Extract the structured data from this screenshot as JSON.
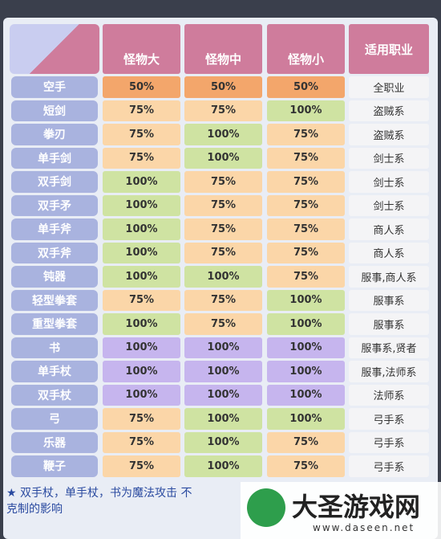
{
  "header": {
    "columns": [
      "怪物大",
      "怪物中",
      "怪物小",
      "适用职业"
    ]
  },
  "table": {
    "rows": [
      [
        "空手",
        "50%",
        "50%",
        "50%",
        "全职业"
      ],
      [
        "短剑",
        "75%",
        "75%",
        "100%",
        "盗贼系"
      ],
      [
        "拳刃",
        "75%",
        "100%",
        "75%",
        "盗贼系"
      ],
      [
        "单手剑",
        "75%",
        "100%",
        "75%",
        "剑士系"
      ],
      [
        "双手剑",
        "100%",
        "75%",
        "75%",
        "剑士系"
      ],
      [
        "双手矛",
        "100%",
        "75%",
        "75%",
        "剑士系"
      ],
      [
        "单手斧",
        "100%",
        "75%",
        "75%",
        "商人系"
      ],
      [
        "双手斧",
        "100%",
        "75%",
        "75%",
        "商人系"
      ],
      [
        "钝器",
        "100%",
        "100%",
        "75%",
        "服事,商人系"
      ],
      [
        "轻型拳套",
        "75%",
        "75%",
        "100%",
        "服事系"
      ],
      [
        "重型拳套",
        "100%",
        "75%",
        "100%",
        "服事系"
      ],
      [
        "书",
        "100%",
        "100%",
        "100%",
        "服事系,贤者"
      ],
      [
        "单手杖",
        "100%",
        "100%",
        "100%",
        "服事,法师系"
      ],
      [
        "双手杖",
        "100%",
        "100%",
        "100%",
        "法师系"
      ],
      [
        "弓",
        "75%",
        "100%",
        "100%",
        "弓手系"
      ],
      [
        "乐器",
        "75%",
        "100%",
        "75%",
        "弓手系"
      ],
      [
        "鞭子",
        "75%",
        "100%",
        "75%",
        "弓手系"
      ]
    ]
  },
  "footer": {
    "note_lines": [
      "双手杖，单手杖，书为魔法攻击 不",
      "克制的影响"
    ]
  },
  "watermark": {
    "title": "大圣游戏网",
    "url": "www.daseen.net"
  }
}
